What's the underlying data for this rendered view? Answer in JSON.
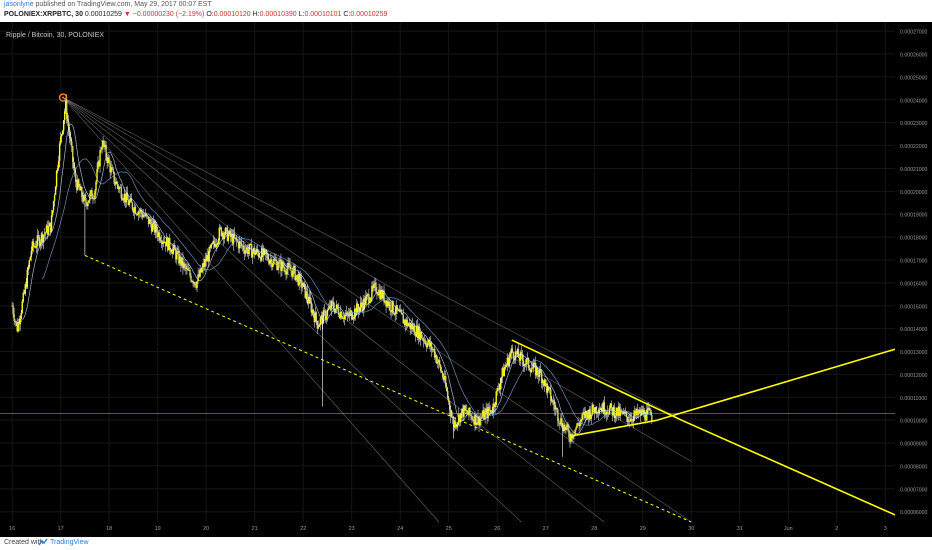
{
  "header": {
    "author": "jasonlyne",
    "published": "published on TradingView.com, May 29, 2017 00:07 EST",
    "symbol": "POLONIEX:XRPBTC, 30",
    "last": "0.00010259",
    "change": "−0.00000230 (−2.19%)",
    "o_label": "O:",
    "o_value": "0.00010120",
    "h_label": "H:",
    "h_value": "0.00010390",
    "l_label": "L:",
    "l_value": "0.00010101",
    "c_label": "C:",
    "c_value": "0.00010259"
  },
  "footer": {
    "created_with": "Created with",
    "brand": "TradingView"
  },
  "chart_data": {
    "type": "candlestick",
    "title": "Ripple / Bitcoin, 30, POLONIEX",
    "x_ticks": [
      "16",
      "17",
      "18",
      "19",
      "20",
      "21",
      "22",
      "23",
      "24",
      "25",
      "26",
      "27",
      "28",
      "29",
      "30",
      "31",
      "Jun",
      "2",
      "3"
    ],
    "y_ticks": [
      "0.00027000",
      "0.00026000",
      "0.00025000",
      "0.00024000",
      "0.00023000",
      "0.00022000",
      "0.00021000",
      "0.00020000",
      "0.00019000",
      "0.00018000",
      "0.00017000",
      "0.00016000",
      "0.00015000",
      "0.00014000",
      "0.00013000",
      "0.00012000",
      "0.00011000",
      "0.00010000",
      "0.00009000",
      "0.00008000",
      "0.00007000",
      "0.00006000"
    ],
    "ylim": [
      5.55e-05,
      0.000274
    ],
    "xlim": [
      15.75,
      34.2
    ],
    "price_anchors": [
      [
        16.0,
        0.00015
      ],
      [
        16.1,
        0.00014
      ],
      [
        16.25,
        0.000155
      ],
      [
        16.4,
        0.000175
      ],
      [
        16.6,
        0.00018
      ],
      [
        16.8,
        0.000185
      ],
      [
        16.95,
        0.000215
      ],
      [
        17.1,
        0.000238
      ],
      [
        17.3,
        0.000205
      ],
      [
        17.5,
        0.000195
      ],
      [
        17.7,
        0.0002
      ],
      [
        17.85,
        0.000222
      ],
      [
        18.1,
        0.000205
      ],
      [
        18.4,
        0.000195
      ],
      [
        18.7,
        0.00019
      ],
      [
        19.0,
        0.000182
      ],
      [
        19.3,
        0.000175
      ],
      [
        19.6,
        0.000165
      ],
      [
        19.8,
        0.00016
      ],
      [
        20.0,
        0.00017
      ],
      [
        20.3,
        0.000183
      ],
      [
        20.5,
        0.00018
      ],
      [
        20.8,
        0.000175
      ],
      [
        21.2,
        0.000172
      ],
      [
        21.5,
        0.000168
      ],
      [
        21.8,
        0.000165
      ],
      [
        22.0,
        0.000158
      ],
      [
        22.3,
        0.000142
      ],
      [
        22.6,
        0.00015
      ],
      [
        22.9,
        0.000145
      ],
      [
        23.2,
        0.00015
      ],
      [
        23.5,
        0.000158
      ],
      [
        23.8,
        0.00015
      ],
      [
        24.1,
        0.000143
      ],
      [
        24.4,
        0.000138
      ],
      [
        24.7,
        0.00013
      ],
      [
        24.9,
        0.000118
      ],
      [
        25.1,
        9.8e-05
      ],
      [
        25.3,
        0.000104
      ],
      [
        25.6,
        0.0001
      ],
      [
        25.9,
        0.000105
      ],
      [
        26.1,
        0.00012
      ],
      [
        26.3,
        0.00013
      ],
      [
        26.6,
        0.000125
      ],
      [
        26.9,
        0.00012
      ],
      [
        27.1,
        0.00011
      ],
      [
        27.3,
        0.0001
      ],
      [
        27.5,
        9.3e-05
      ],
      [
        27.8,
        0.000102
      ],
      [
        28.1,
        0.000106
      ],
      [
        28.4,
        0.000104
      ],
      [
        28.7,
        0.000101
      ],
      [
        29.0,
        0.000103
      ],
      [
        29.2,
        0.000102
      ]
    ],
    "spikes": [
      [
        17.5,
        0.000172
      ],
      [
        22.4,
        0.000106
      ],
      [
        25.1,
        9.2e-05
      ],
      [
        27.35,
        8.4e-05
      ]
    ],
    "hline": 0.000103,
    "marker": [
      17.05,
      0.000241
    ],
    "series": [
      {
        "name": "",
        "color": "#ffff00",
        "style": "solid",
        "width": 1.6,
        "points": [
          [
            26.3,
            0.000135
          ],
          [
            29.8,
            0.0001
          ]
        ]
      },
      {
        "name": "",
        "color": "#ffff00",
        "style": "solid",
        "width": 1.6,
        "points": [
          [
            27.5,
            9.3e-05
          ],
          [
            29.3,
            0.0001
          ]
        ]
      },
      {
        "name": "",
        "color": "#ffff00",
        "style": "solid",
        "width": 1.6,
        "points": [
          [
            29.8,
            0.0001
          ],
          [
            34.2,
            5.86e-05
          ]
        ]
      },
      {
        "name": "",
        "color": "#ffff00",
        "style": "solid",
        "width": 1.6,
        "points": [
          [
            29.3,
            0.0001
          ],
          [
            34.2,
            0.000131
          ]
        ]
      },
      {
        "name": "",
        "color": "#ffff00",
        "style": "dashed",
        "width": 1,
        "points": [
          [
            17.5,
            0.000172
          ],
          [
            30.0,
            5.55e-05
          ]
        ]
      }
    ],
    "fan_lines": [
      [
        [
          17.05,
          0.000241
        ],
        [
          30.0,
          5.55e-05
        ]
      ],
      [
        [
          17.05,
          0.000241
        ],
        [
          28.2,
          5.55e-05
        ]
      ],
      [
        [
          17.05,
          0.000241
        ],
        [
          26.5,
          5.55e-05
        ]
      ],
      [
        [
          17.05,
          0.000241
        ],
        [
          24.8,
          5.55e-05
        ]
      ],
      [
        [
          17.05,
          0.000241
        ],
        [
          30.0,
          8.2e-05
        ]
      ],
      [
        [
          17.05,
          0.000241
        ],
        [
          30.0,
          9.8e-05
        ]
      ]
    ],
    "grid": true,
    "colors": {
      "background": "#000000",
      "candle": "#ffff00",
      "wick": "#ffffff",
      "ma1": "#7fb0e0",
      "ma2": "#c8e8ff",
      "fan": "#b0b0b0",
      "hline": "#ffff00",
      "axis_text": "#9a9a9a",
      "marker": "#f08a24"
    }
  }
}
